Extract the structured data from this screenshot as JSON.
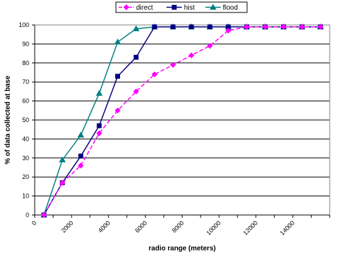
{
  "chart_data": {
    "type": "line",
    "title": "",
    "xlabel": "radio range (meters)",
    "ylabel": "% of data collected at base",
    "xlim": [
      0,
      16000
    ],
    "ylim": [
      0,
      100
    ],
    "x_ticks": [
      0,
      2000,
      4000,
      6000,
      8000,
      10000,
      12000,
      14000
    ],
    "y_ticks": [
      0,
      10,
      20,
      30,
      40,
      50,
      60,
      70,
      80,
      90,
      100
    ],
    "grid": true,
    "legend_position": "top-center",
    "series": [
      {
        "name": "direct",
        "color": "#ff00ff",
        "dash": "dashed",
        "marker": "diamond",
        "x": [
          500,
          1500,
          2500,
          3500,
          4500,
          5500,
          6500,
          7500,
          8500,
          9500,
          10500,
          11500,
          12500,
          13500,
          14500,
          15500
        ],
        "y": [
          0,
          17,
          26,
          43,
          55,
          65,
          74,
          79,
          84,
          89,
          97,
          99,
          99,
          99,
          99,
          99
        ]
      },
      {
        "name": "hist",
        "color": "#000080",
        "dash": "solid",
        "marker": "square",
        "x": [
          500,
          1500,
          2500,
          3500,
          4500,
          5500,
          6500,
          7500,
          8500,
          9500,
          10500,
          11500,
          12500,
          13500,
          14500,
          15500
        ],
        "y": [
          0,
          17,
          31,
          47,
          73,
          83,
          99,
          99,
          99,
          99,
          99,
          99,
          99,
          99,
          99,
          99
        ]
      },
      {
        "name": "flood",
        "color": "#008080",
        "dash": "solid",
        "marker": "triangle",
        "x": [
          500,
          1500,
          2500,
          3500,
          4500,
          5500,
          6500,
          7500,
          8500,
          9500,
          10500,
          11500,
          12500,
          13500,
          14500,
          15500
        ],
        "y": [
          0,
          29,
          42,
          64,
          91,
          98,
          99,
          99,
          99,
          99,
          99,
          99,
          99,
          99,
          99,
          99
        ]
      }
    ]
  }
}
